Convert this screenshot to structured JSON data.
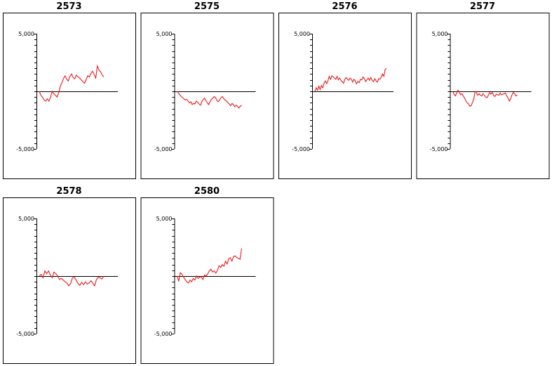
{
  "chart_data": {
    "type": "line",
    "y_tick_labels": [
      "5,000",
      "-5,000"
    ],
    "ylim": [
      -5000,
      5000
    ],
    "line_color": "#e8191b",
    "panels": [
      {
        "title": "2573",
        "values": [
          0,
          -350,
          -500,
          -750,
          -850,
          -650,
          -850,
          -500,
          0,
          -200,
          -350,
          -500,
          -150,
          400,
          750,
          1100,
          1350,
          1050,
          900,
          1300,
          1500,
          1200,
          1100,
          1400,
          1250,
          1150,
          1000,
          850,
          700,
          1000,
          1350,
          1250,
          1550,
          1750,
          1450,
          1150,
          2200,
          1850,
          1700,
          1400,
          1250
        ]
      },
      {
        "title": "2575",
        "values": [
          0,
          -150,
          -300,
          -450,
          -550,
          -650,
          -750,
          -700,
          -850,
          -1000,
          -900,
          -1150,
          -1050,
          -1100,
          -850,
          -950,
          -1100,
          -1200,
          -900,
          -700,
          -600,
          -800,
          -1000,
          -1150,
          -900,
          -700,
          -600,
          -450,
          -550,
          -800,
          -900,
          -750,
          -550,
          -450,
          -650,
          -750,
          -850,
          -1000,
          -1100,
          -1250,
          -1050,
          -1150,
          -1350,
          -1200,
          -1300,
          -1450,
          -1300,
          -1200
        ]
      },
      {
        "title": "2576",
        "values": [
          0,
          300,
          100,
          450,
          150,
          500,
          300,
          700,
          900,
          650,
          900,
          1300,
          1050,
          1350,
          1250,
          1150,
          1050,
          1300,
          1000,
          1150,
          950,
          850,
          700,
          1050,
          1200,
          1050,
          950,
          1150,
          1050,
          800,
          1050,
          900,
          650,
          850,
          750,
          1050,
          1000,
          1250,
          1100,
          850,
          1000,
          1150,
          950,
          1200,
          950,
          850,
          1100,
          900,
          800,
          1100,
          1050,
          1250,
          1500,
          1300,
          1900,
          2000
        ]
      },
      {
        "title": "2577",
        "values": [
          0,
          -250,
          -400,
          -150,
          100,
          -100,
          -300,
          -200,
          -400,
          -600,
          -850,
          -1000,
          -1100,
          -1300,
          -1250,
          -950,
          -650,
          0,
          -100,
          -350,
          -200,
          -350,
          -400,
          -200,
          -350,
          -500,
          -550,
          -350,
          -100,
          -250,
          -100,
          -350,
          -450,
          -250,
          -300,
          -350,
          -150,
          -300,
          -250,
          -200,
          -150,
          -400,
          -600,
          -850,
          -650,
          -300,
          -100,
          -200,
          -400,
          -300
        ]
      },
      {
        "title": "2578",
        "values": [
          0,
          150,
          -150,
          450,
          200,
          450,
          100,
          -150,
          350,
          200,
          0,
          -300,
          -200,
          -350,
          -500,
          -600,
          -850,
          -650,
          -150,
          -100,
          -350,
          -650,
          -800,
          -550,
          -750,
          -500,
          -700,
          -600,
          -400,
          -600,
          -850,
          -300,
          -100,
          -150,
          -250,
          0
        ]
      },
      {
        "title": "2580",
        "values": [
          0,
          -450,
          300,
          150,
          -100,
          -300,
          -500,
          -600,
          -350,
          -500,
          -200,
          -350,
          0,
          -200,
          -100,
          -50,
          -300,
          100,
          0,
          200,
          450,
          600,
          350,
          450,
          250,
          500,
          900,
          750,
          1000,
          850,
          1300,
          1050,
          1500,
          1600,
          1300,
          1700,
          1750,
          1600,
          1550,
          1450,
          2400
        ]
      }
    ]
  }
}
